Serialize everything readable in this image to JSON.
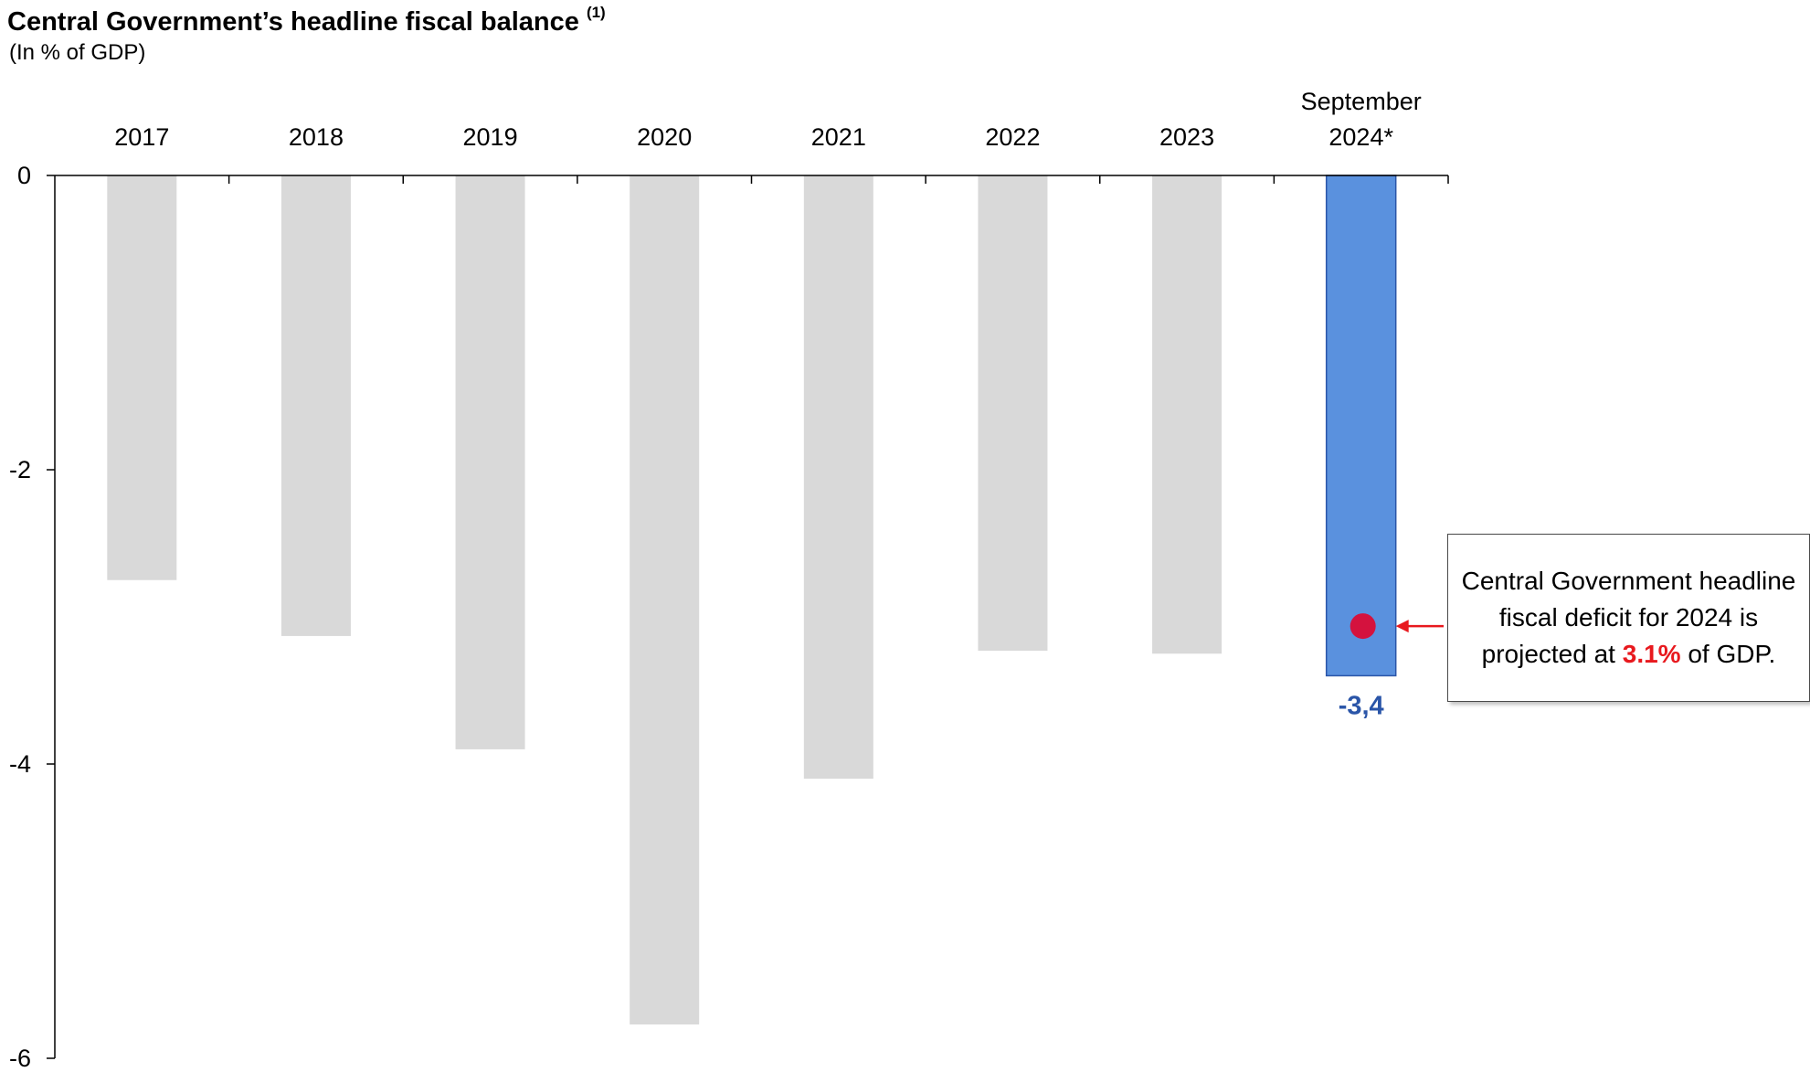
{
  "title": "Central Government’s headline fiscal balance",
  "title_note": "(1)",
  "subtitle": "(In % of GDP)",
  "colors": {
    "bar": "#d9d9d9",
    "highlight_bar": "#5a91de",
    "highlight_bar_border": "#2a55a8",
    "value_label": "#2a55a8",
    "projection_dot": "#d4123e",
    "arrow": "#e8191e"
  },
  "chart_data": {
    "type": "bar",
    "title": "Central Government’s headline fiscal balance",
    "subtitle": "(In % of GDP)",
    "categories": [
      "2017",
      "2018",
      "2019",
      "2020",
      "2021",
      "2022",
      "2023",
      "September 2024*"
    ],
    "category_lines": [
      [
        "2017"
      ],
      [
        "2018"
      ],
      [
        "2019"
      ],
      [
        "2020"
      ],
      [
        "2021"
      ],
      [
        "2022"
      ],
      [
        "2023"
      ],
      [
        "September",
        "2024*"
      ]
    ],
    "values": [
      -2.75,
      -3.13,
      -3.9,
      -5.77,
      -4.1,
      -3.23,
      -3.25,
      -3.4
    ],
    "highlight_index": 7,
    "data_labels": [
      {
        "index": 7,
        "text": "-3,4"
      }
    ],
    "projection": {
      "index": 7,
      "value": -3.1
    },
    "ylim": [
      -6,
      0
    ],
    "yticks": [
      0,
      -2,
      -4,
      -6
    ],
    "ytick_labels": [
      "0",
      "-2",
      "-4",
      "-6"
    ],
    "x_axis_position": "top",
    "grid": false,
    "legend": "none",
    "annotation": {
      "text_before": "Central Government headline fiscal deficit for 2024 is projected at ",
      "highlight": "3.1%",
      "text_after": " of GDP."
    }
  }
}
